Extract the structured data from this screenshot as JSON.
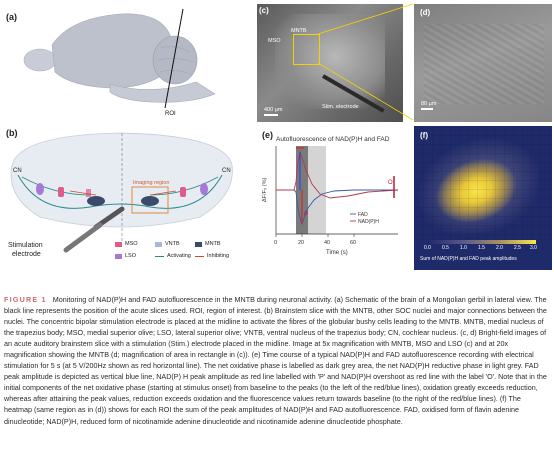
{
  "panels": {
    "a": {
      "label": "(a)",
      "roi": "ROI"
    },
    "b": {
      "label": "(b)",
      "cn_left": "CN",
      "cn_right": "CN",
      "imaging_region": "Imaging region",
      "stim_electrode": "Stimulation\nelectrode",
      "legend": [
        {
          "name": "MSO",
          "color": "#e05a8a"
        },
        {
          "name": "VNTB",
          "color": "#a8b8d8"
        },
        {
          "name": "MNTB",
          "color": "#3a4a6a"
        },
        {
          "name": "LSO",
          "color": "#a878d8"
        },
        {
          "name": "Activating",
          "color": "#2a8a8a"
        },
        {
          "name": "Inhibiting",
          "color": "#d04a2a"
        }
      ]
    },
    "c": {
      "label": "(c)",
      "mso": "MSO",
      "mntb": "MNTB",
      "scale": "400 µm",
      "stim": "Stim. electrode"
    },
    "d": {
      "label": "(d)",
      "scale": "80 µm"
    },
    "e": {
      "label": "(e)",
      "title": "Autofluorescence of NAD(P)H and FAD",
      "ylabel": "ΔF/F₀ (%)",
      "xlabel": "Time (s)",
      "xticks": [
        "0",
        "20",
        "40",
        "60"
      ],
      "p_label": "P",
      "o_label": "O",
      "legend_fad": "FAD",
      "legend_nadph": "NAD(P)H"
    },
    "f": {
      "label": "(f)",
      "ticks": [
        "0.0",
        "0.5",
        "1.0",
        "1.5",
        "2.0",
        "2.5",
        "3.0"
      ],
      "colorbar_label": "Sum of NAD(P)H and FAD peak amplitudes"
    }
  },
  "caption": {
    "fig_id": "FIGURE 1",
    "text": "Monitoring of NAD(P)H and FAD autofluorescence in the MNTB during neuronal activity. (a) Schematic of the brain of a Mongolian gerbil in lateral view. The black line represents the position of the acute slices used. ROI, region of interest. (b) Brainstem slice with the MNTB, other SOC nuclei and major connections between the nuclei. The concentric bipolar stimulation electrode is placed at the midline to activate the fibres of the globular bushy cells leading to the MNTB. MNTB, medial nucleus of the trapezius body; MSO, medial superior olive; LSO, lateral superior olive; VNTB, ventral nucleus of the trapezius body; CN, cochlear nucleus. (c, d) Bright-field images of an acute auditory brainstem slice with a stimulation (Stim.) electrode placed in the midline. Image at 5x magnification with MNTB, MSO and LSO (c) and at 20x magnification showing the MNTB (d; magnification of area in rectangle in (c)). (e) Time course of a typical NAD(P)H and FAD autofluorescence recording with electrical stimulation for 5 s (at 5 V/200Hz shown as red horizontal line). The net oxidative phase is labelled as dark grey area, the net NAD(P)H reductive phase in light grey. FAD peak amplitude is depicted as vertical blue line, NAD(P) H peak amplitude as red line labelled with 'P' and NAD(P)H overshoot as red line with the label 'O'. Note that in the initial components of the net oxidative phase (starting at stimulus onset) from baseline to the peaks (to the left of the red/blue lines), oxidation greatly exceeds reduction, whereas after attaining the peak values, reduction exceeds oxidation and the fluorescence values return towards baseline (to the right of the red/blue lines). (f) The heatmap (same region as in (d)) shows for each ROI the sum of the peak amplitudes of NAD(P)H and FAD autofluorescence. FAD, oxidised form of flavin adenine dinucleotide; NAD(P)H, reduced form of nicotinamide adenine dinucleotide and nicotinamide adenine dinucleotide phosphate."
  }
}
